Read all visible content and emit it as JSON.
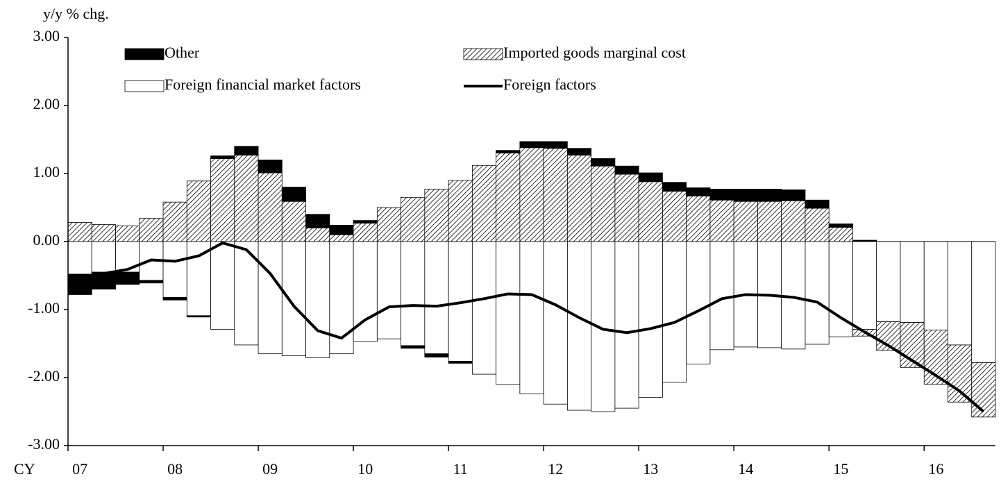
{
  "chart_data": {
    "type": "bar",
    "stacked": true,
    "y_label": "y/y % chg.",
    "x_label": "CY",
    "categories": [
      "07",
      null,
      null,
      null,
      "08",
      null,
      null,
      null,
      "09",
      null,
      null,
      null,
      "10",
      null,
      null,
      null,
      "11",
      null,
      null,
      null,
      "12",
      null,
      null,
      null,
      "13",
      null,
      null,
      null,
      "14",
      null,
      null,
      null,
      "15",
      null,
      null,
      null,
      "16",
      null,
      null
    ],
    "ylim": [
      -3,
      3
    ],
    "yticks": [
      {
        "value": -3,
        "label": "-3.00"
      },
      {
        "value": -2,
        "label": "-2.00"
      },
      {
        "value": -1,
        "label": "-1.00"
      },
      {
        "value": 0,
        "label": "0.00"
      },
      {
        "value": 1,
        "label": "1.00"
      },
      {
        "value": 2,
        "label": "2.00"
      },
      {
        "value": 3,
        "label": "3.00"
      }
    ],
    "series": [
      {
        "name": "Foreign financial market factors",
        "color": "#ffffff",
        "pattern": "none",
        "values": [
          -0.48,
          -0.45,
          -0.45,
          -0.57,
          -0.82,
          -1.09,
          -1.29,
          -1.52,
          -1.65,
          -1.68,
          -1.71,
          -1.65,
          -1.47,
          -1.43,
          -1.53,
          -1.65,
          -1.76,
          -1.95,
          -2.1,
          -2.24,
          -2.39,
          -2.48,
          -2.5,
          -2.45,
          -2.29,
          -2.07,
          -1.8,
          -1.59,
          -1.55,
          -1.56,
          -1.58,
          -1.51,
          -1.4,
          -1.29,
          -1.18,
          -1.19,
          -1.3,
          -1.52,
          -1.78
        ]
      },
      {
        "name": "Imported goods marginal cost",
        "color": "#ffffff",
        "pattern": "hatch",
        "values": [
          0.28,
          0.25,
          0.23,
          0.34,
          0.58,
          0.89,
          1.22,
          1.27,
          1.01,
          0.59,
          0.2,
          0.1,
          0.27,
          0.5,
          0.65,
          0.77,
          0.9,
          1.12,
          1.3,
          1.38,
          1.37,
          1.27,
          1.11,
          0.99,
          0.88,
          0.74,
          0.67,
          0.61,
          0.59,
          0.59,
          0.6,
          0.49,
          0.21,
          -0.1,
          -0.42,
          -0.66,
          -0.8,
          -0.84,
          -0.8
        ]
      },
      {
        "name": "Other",
        "color": "#000000",
        "pattern": "none",
        "values": [
          -0.3,
          -0.25,
          -0.18,
          -0.04,
          -0.04,
          -0.02,
          0.04,
          0.13,
          0.19,
          0.21,
          0.2,
          0.14,
          0.04,
          0.0,
          -0.04,
          -0.05,
          -0.03,
          0.0,
          0.04,
          0.09,
          0.1,
          0.1,
          0.11,
          0.12,
          0.13,
          0.13,
          0.12,
          0.16,
          0.18,
          0.18,
          0.16,
          0.12,
          0.05,
          0.02,
          0.0,
          0.0,
          0.0,
          0.0,
          0.0
        ]
      },
      {
        "name": "Foreign factors",
        "type": "line",
        "color": "#000000",
        "values": [
          -0.55,
          -0.47,
          -0.41,
          -0.27,
          -0.29,
          -0.21,
          -0.02,
          -0.12,
          -0.47,
          -0.95,
          -1.31,
          -1.42,
          -1.15,
          -0.96,
          -0.94,
          -0.95,
          -0.9,
          -0.84,
          -0.77,
          -0.78,
          -0.93,
          -1.12,
          -1.29,
          -1.34,
          -1.28,
          -1.19,
          -1.02,
          -0.84,
          -0.78,
          -0.79,
          -0.82,
          -0.89,
          -1.12,
          -1.33,
          -1.53,
          -1.75,
          -1.97,
          -2.2,
          -2.5
        ]
      }
    ]
  }
}
